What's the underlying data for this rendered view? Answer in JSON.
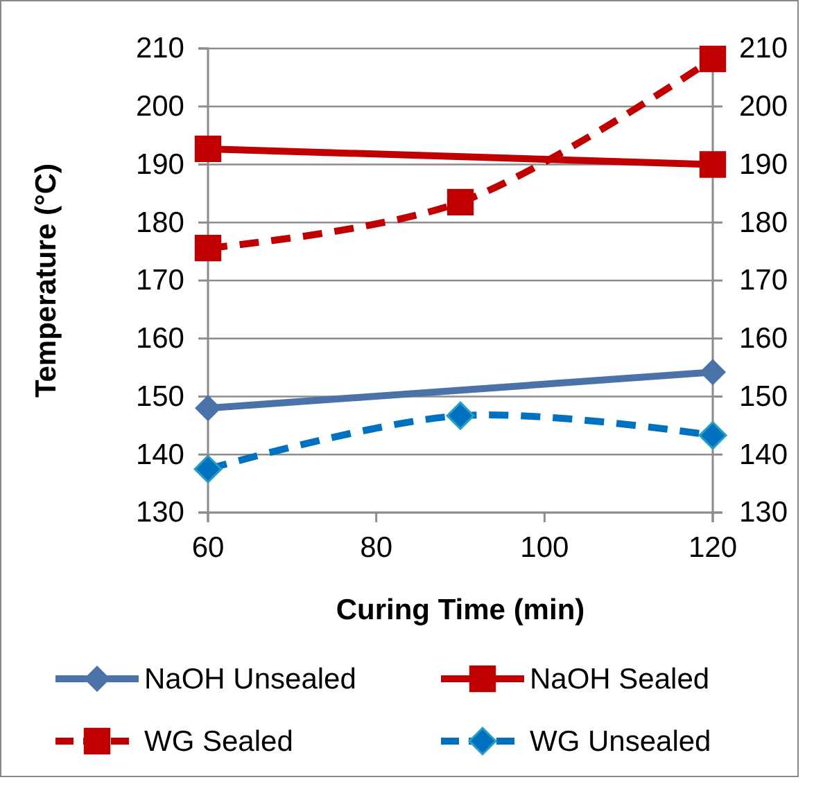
{
  "chart_data": {
    "type": "line",
    "xlabel": "Curing Time (min)",
    "ylabel": "Temperature (°C)",
    "xlim": [
      60,
      120
    ],
    "xticks": [
      60,
      80,
      100,
      120
    ],
    "ylim": [
      130,
      210
    ],
    "yticks": [
      130,
      140,
      150,
      160,
      170,
      180,
      190,
      200,
      210
    ],
    "y2lim": [
      130,
      210
    ],
    "y2ticks": [
      130,
      140,
      150,
      160,
      170,
      180,
      190,
      200,
      210
    ],
    "grid": "y",
    "legend": "bottom",
    "series": [
      {
        "name": "NaOH Unsealed",
        "color": "#4a72a8",
        "marker": "diamond",
        "line_style": "solid",
        "x": [
          60,
          120
        ],
        "values": [
          148.0,
          154.2
        ]
      },
      {
        "name": "NaOH Sealed",
        "color": "#c00000",
        "marker": "square",
        "line_style": "solid",
        "x": [
          60,
          120
        ],
        "values": [
          192.7,
          190.0
        ]
      },
      {
        "name": "WG Sealed",
        "color": "#c00000",
        "marker": "square",
        "line_style": "dashed",
        "x": [
          60,
          90,
          120
        ],
        "values": [
          175.6,
          183.5,
          208.2
        ]
      },
      {
        "name": "WG Unsealed",
        "color": "#0070c0",
        "marker": "diamond",
        "line_style": "dashed",
        "x": [
          60,
          90,
          120
        ],
        "values": [
          137.5,
          146.7,
          143.3
        ]
      }
    ]
  }
}
